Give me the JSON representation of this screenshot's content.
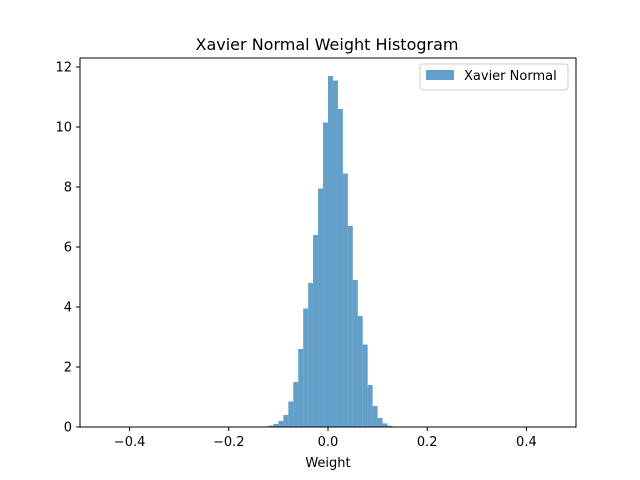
{
  "chart_data": {
    "type": "bar",
    "title": "Xavier Normal Weight Histogram",
    "xlabel": "Weight",
    "ylabel": "",
    "xlim": [
      -0.5,
      0.5
    ],
    "ylim": [
      0,
      12.3
    ],
    "grid": false,
    "legend_position": "top-right",
    "x_ticks": [
      -0.4,
      -0.2,
      0.0,
      0.2,
      0.4
    ],
    "x_tick_labels": [
      "−0.4",
      "−0.2",
      "0.0",
      "0.2",
      "0.4"
    ],
    "y_ticks": [
      0,
      2,
      4,
      6,
      8,
      10,
      12
    ],
    "y_tick_labels": [
      "0",
      "2",
      "4",
      "6",
      "8",
      "10",
      "12"
    ],
    "bin_width": 0.01,
    "series": [
      {
        "name": "Xavier Normal",
        "color": "#1f77b4",
        "opacity": 0.7,
        "bin_starts": [
          -0.13,
          -0.12,
          -0.11,
          -0.1,
          -0.09,
          -0.08,
          -0.07,
          -0.06,
          -0.05,
          -0.04,
          -0.03,
          -0.02,
          -0.01,
          0.0,
          0.01,
          0.02,
          0.03,
          0.04,
          0.05,
          0.06,
          0.07,
          0.08,
          0.09,
          0.1,
          0.11,
          0.12
        ],
        "values": [
          0.02,
          0.05,
          0.1,
          0.2,
          0.4,
          0.85,
          1.5,
          2.6,
          3.95,
          4.8,
          6.4,
          7.95,
          10.15,
          11.7,
          11.55,
          10.6,
          8.45,
          6.7,
          4.9,
          3.7,
          2.75,
          1.4,
          0.7,
          0.3,
          0.12,
          0.04
        ]
      }
    ]
  }
}
